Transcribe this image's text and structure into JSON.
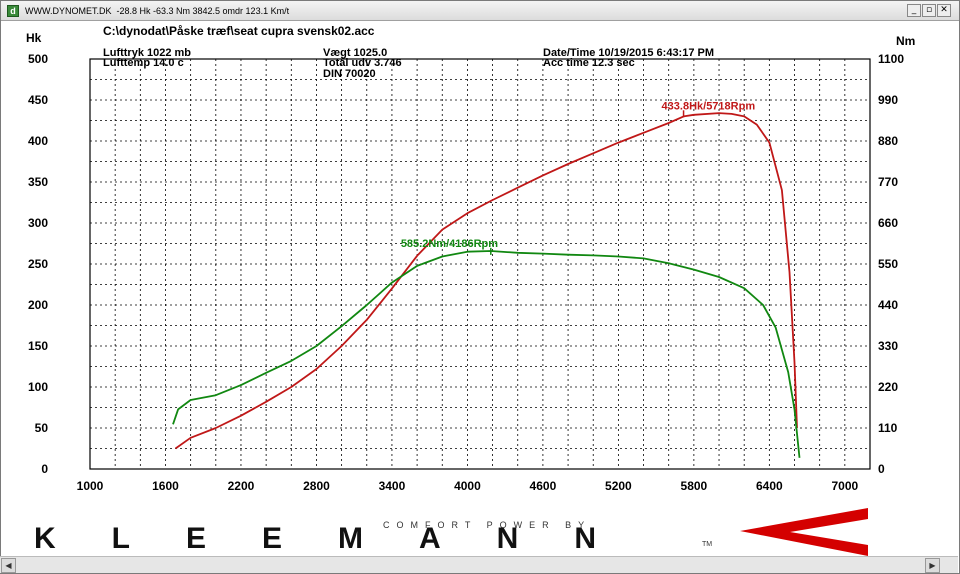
{
  "window": {
    "title": "WWW.DYNOMET.DK  -28.8 Hk -63.3 Nm 3842.5 omdr 123.1 Km/t",
    "min_glyph": "_",
    "restore_glyph": "▫",
    "close_glyph": "✕",
    "scroll_left_glyph": "◀",
    "scroll_right_glyph": "▶"
  },
  "header": {
    "file_path": "C:\\dynodat\\Påske træf\\seat cupra svensk02.acc",
    "lufttryk": "Lufttryk   1022 mb",
    "lufttemp": "Lufttemp   14.0 c",
    "vaegt": "Vægt      1025.0",
    "total_udv": "Total udv 3.746",
    "din": "DIN 70020",
    "datetime": "Date/Time  10/19/2015 6:43:17 PM",
    "acc_time": "Acc time   12.3 sec"
  },
  "logo": {
    "text": "KLEEMANN",
    "tagline": "COMFORT POWER BY",
    "tm": "TM",
    "accent_color": "#d40000"
  },
  "chart_data": {
    "type": "line",
    "x": {
      "label": "",
      "lim": [
        1000,
        7200
      ],
      "ticks": [
        "1000",
        "1600",
        "2200",
        "2800",
        "3400",
        "4000",
        "4600",
        "5200",
        "5800",
        "6400",
        "7000"
      ]
    },
    "y_left": {
      "label": "Hk",
      "lim": [
        0,
        500
      ],
      "ticks": [
        "0",
        "50",
        "100",
        "150",
        "200",
        "250",
        "300",
        "350",
        "400",
        "450",
        "500"
      ]
    },
    "y_right": {
      "label": "Nm",
      "lim": [
        0,
        1100
      ],
      "ticks": [
        "0",
        "110",
        "220",
        "330",
        "440",
        "550",
        "660",
        "770",
        "880",
        "990",
        "1100"
      ]
    },
    "grid": true,
    "series": [
      {
        "name": "Hk",
        "color": "#c01818",
        "axis": "left",
        "peak_label": "433.8Hk/5718Rpm",
        "peak": [
          5718,
          433.8
        ],
        "points": [
          [
            1680,
            25
          ],
          [
            1800,
            38
          ],
          [
            2000,
            50
          ],
          [
            2200,
            65
          ],
          [
            2400,
            82
          ],
          [
            2600,
            100
          ],
          [
            2800,
            122
          ],
          [
            3000,
            150
          ],
          [
            3200,
            182
          ],
          [
            3400,
            220
          ],
          [
            3600,
            260
          ],
          [
            3800,
            292
          ],
          [
            4000,
            312
          ],
          [
            4200,
            328
          ],
          [
            4400,
            343
          ],
          [
            4600,
            358
          ],
          [
            4800,
            372
          ],
          [
            5000,
            385
          ],
          [
            5200,
            398
          ],
          [
            5400,
            410
          ],
          [
            5600,
            422
          ],
          [
            5718,
            430
          ],
          [
            5800,
            432
          ],
          [
            6000,
            434
          ],
          [
            6100,
            433
          ],
          [
            6200,
            430
          ],
          [
            6300,
            420
          ],
          [
            6400,
            398
          ],
          [
            6500,
            340
          ],
          [
            6560,
            240
          ],
          [
            6600,
            130
          ],
          [
            6620,
            50
          ]
        ]
      },
      {
        "name": "Nm",
        "color": "#118811",
        "axis": "right",
        "peak_label": "585.2Nm/4186Rpm",
        "peak": [
          4186,
          585.2
        ],
        "points": [
          [
            1660,
            120
          ],
          [
            1700,
            160
          ],
          [
            1800,
            185
          ],
          [
            2000,
            198
          ],
          [
            2200,
            225
          ],
          [
            2400,
            258
          ],
          [
            2600,
            290
          ],
          [
            2800,
            330
          ],
          [
            3000,
            383
          ],
          [
            3200,
            440
          ],
          [
            3400,
            500
          ],
          [
            3600,
            545
          ],
          [
            3800,
            570
          ],
          [
            4000,
            583
          ],
          [
            4186,
            585
          ],
          [
            4400,
            580
          ],
          [
            4600,
            578
          ],
          [
            4800,
            575
          ],
          [
            5000,
            573
          ],
          [
            5200,
            570
          ],
          [
            5400,
            565
          ],
          [
            5600,
            552
          ],
          [
            5800,
            535
          ],
          [
            6000,
            515
          ],
          [
            6200,
            485
          ],
          [
            6350,
            440
          ],
          [
            6450,
            380
          ],
          [
            6550,
            260
          ],
          [
            6600,
            160
          ],
          [
            6640,
            30
          ]
        ]
      }
    ]
  }
}
